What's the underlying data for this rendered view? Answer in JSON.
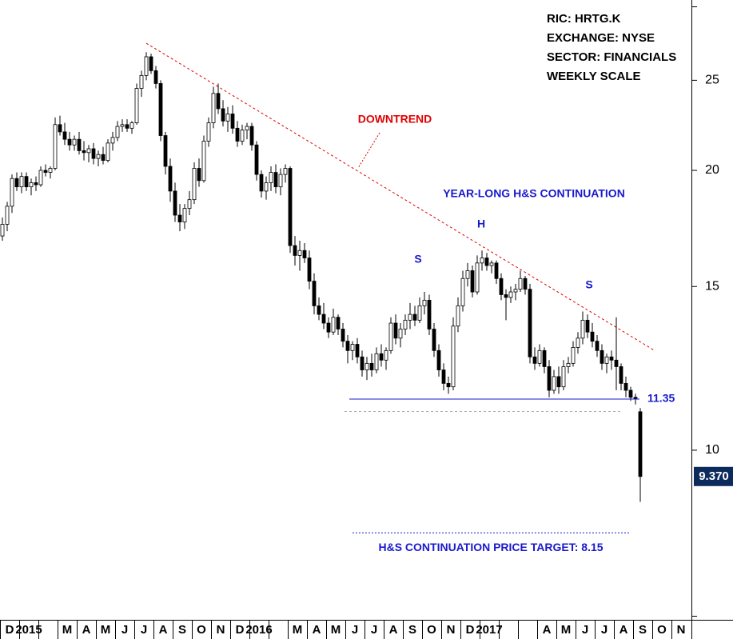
{
  "chart_data": {
    "type": "candlestick",
    "info": [
      "RIC: HRTG.K",
      "EXCHANGE: NYSE",
      "SECTOR: FINANCIALS",
      "WEEKLY SCALE"
    ],
    "categories": [
      "D",
      null,
      null,
      null,
      "2015",
      null,
      null,
      null,
      null,
      null,
      null,
      null,
      "M",
      null,
      null,
      null,
      "A",
      null,
      null,
      null,
      "M",
      null,
      null,
      null,
      "J",
      null,
      null,
      null,
      "J",
      null,
      null,
      null,
      "A",
      null,
      null,
      null,
      "S",
      null,
      null,
      null,
      "O",
      null,
      null,
      null,
      "N",
      null,
      null,
      null,
      "D",
      null,
      null,
      null,
      "2016",
      null,
      null,
      null,
      null,
      null,
      null,
      null,
      "M",
      null,
      null,
      null,
      "A",
      null,
      null,
      null,
      "M",
      null,
      null,
      null,
      "J",
      null,
      null,
      null,
      "J",
      null,
      null,
      null,
      "A",
      null,
      null,
      null,
      "S",
      null,
      null,
      null,
      "O",
      null,
      null,
      null,
      "N",
      null,
      null,
      null,
      "D",
      null,
      null,
      null,
      "2017",
      null,
      null,
      null,
      null,
      null,
      null,
      null,
      null,
      null,
      null,
      null,
      "A",
      null,
      null,
      null,
      "M",
      null,
      null,
      null,
      "J",
      null,
      null,
      null,
      "J",
      null,
      null,
      null,
      "A",
      null,
      null,
      null,
      "S",
      null,
      null,
      null,
      "O",
      null,
      null,
      null,
      "N",
      null,
      null,
      null
    ],
    "open": [
      17.0,
      17.5,
      18.3,
      19.6,
      19.2,
      19.7,
      19.2,
      19.4,
      19.3,
      20.0,
      19.9,
      20.1,
      22.4,
      22.0,
      21.6,
      21.3,
      21.6,
      21.0,
      20.9,
      21.1,
      20.6,
      20.8,
      20.5,
      21.4,
      21.7,
      22.3,
      22.4,
      22.2,
      22.5,
      24.5,
      25.3,
      26.5,
      25.6,
      24.8,
      21.8,
      20.2,
      19.0,
      17.9,
      17.6,
      18.2,
      18.6,
      20.1,
      19.5,
      21.5,
      22.5,
      24.2,
      23.3,
      22.6,
      23.0,
      22.2,
      21.5,
      22.1,
      22.3,
      21.3,
      19.8,
      19.0,
      19.4,
      19.9,
      19.2,
      19.8,
      20.1,
      16.6,
      16.2,
      16.4,
      16.1,
      15.2,
      14.3,
      14.0,
      13.7,
      13.4,
      13.9,
      13.5,
      13.1,
      12.8,
      13.0,
      12.6,
      12.2,
      12.4,
      12.2,
      12.7,
      12.5,
      12.8,
      13.7,
      13.2,
      13.5,
      13.8,
      14.0,
      13.8,
      14.3,
      14.5,
      13.5,
      12.8,
      12.2,
      11.8,
      11.7,
      13.6,
      14.3,
      15.3,
      15.6,
      14.8,
      15.9,
      16.1,
      15.8,
      15.9,
      15.3,
      14.7,
      14.6,
      14.8,
      14.9,
      15.3,
      14.9,
      12.6,
      12.4,
      12.8,
      12.3,
      11.6,
      12.0,
      11.7,
      12.3,
      12.4,
      12.9,
      13.2,
      13.8,
      13.4,
      13.1,
      12.8,
      12.4,
      12.6,
      12.5,
      12.3,
      11.8,
      11.6,
      11.4,
      11.0,
      null,
      null,
      null,
      null,
      null,
      null,
      null,
      null,
      null,
      null
    ],
    "high": [
      17.8,
      18.5,
      19.8,
      19.9,
      19.9,
      19.9,
      19.6,
      19.7,
      20.2,
      20.3,
      20.2,
      22.8,
      22.9,
      22.5,
      22.0,
      21.8,
      22.0,
      21.5,
      21.3,
      21.4,
      21.0,
      21.2,
      21.6,
      22.0,
      22.6,
      22.7,
      22.7,
      22.6,
      24.8,
      25.6,
      26.8,
      26.7,
      25.9,
      25.0,
      22.0,
      20.6,
      19.4,
      18.4,
      18.4,
      19.0,
      20.4,
      20.6,
      21.8,
      22.8,
      24.6,
      24.8,
      23.8,
      23.4,
      23.5,
      22.6,
      22.4,
      22.5,
      22.5,
      21.5,
      20.0,
      19.7,
      20.2,
      20.3,
      20.1,
      20.3,
      20.2,
      17.0,
      16.8,
      16.7,
      16.4,
      15.5,
      14.6,
      14.4,
      13.9,
      14.2,
      14.0,
      13.7,
      13.3,
      13.1,
      13.2,
      12.8,
      12.6,
      12.7,
      12.9,
      13.0,
      12.9,
      13.9,
      14.0,
      13.7,
      14.0,
      14.4,
      14.3,
      14.6,
      14.8,
      14.7,
      13.7,
      13.0,
      12.4,
      12.0,
      13.9,
      14.6,
      15.6,
      15.9,
      15.8,
      16.2,
      16.4,
      16.3,
      16.0,
      16.0,
      15.5,
      14.9,
      15.0,
      15.1,
      15.6,
      15.4,
      15.1,
      12.9,
      13.0,
      12.9,
      12.5,
      12.2,
      12.3,
      12.5,
      12.6,
      13.1,
      13.4,
      14.1,
      14.0,
      13.7,
      13.3,
      13.0,
      12.7,
      12.8,
      13.9,
      12.4,
      12.0,
      11.7,
      11.5,
      11.1,
      null,
      null,
      null,
      null,
      null,
      null,
      null,
      null,
      null,
      null
    ],
    "low": [
      16.8,
      17.2,
      18.0,
      19.0,
      18.9,
      19.0,
      18.8,
      19.0,
      19.2,
      19.7,
      19.6,
      20.0,
      21.8,
      21.3,
      21.0,
      21.0,
      20.8,
      20.5,
      20.4,
      20.3,
      20.2,
      20.3,
      20.4,
      21.0,
      21.5,
      22.0,
      22.0,
      21.9,
      22.4,
      24.0,
      25.0,
      25.4,
      24.5,
      21.5,
      19.8,
      18.5,
      17.6,
      17.2,
      17.3,
      17.9,
      18.4,
      19.2,
      19.4,
      21.2,
      22.2,
      23.0,
      22.3,
      22.0,
      21.9,
      21.2,
      21.3,
      21.6,
      21.0,
      19.5,
      18.7,
      18.6,
      19.0,
      18.9,
      18.8,
      19.4,
      16.3,
      15.8,
      15.6,
      15.9,
      14.9,
      14.0,
      13.8,
      13.5,
      13.2,
      13.3,
      13.3,
      12.9,
      12.4,
      12.5,
      12.4,
      12.0,
      11.9,
      12.0,
      12.1,
      12.3,
      12.2,
      12.7,
      13.0,
      12.9,
      13.3,
      13.5,
      13.6,
      13.7,
      14.0,
      13.3,
      12.6,
      12.0,
      11.6,
      11.5,
      11.6,
      13.4,
      14.1,
      15.0,
      14.6,
      14.7,
      15.6,
      15.6,
      15.5,
      15.1,
      14.5,
      13.8,
      14.4,
      14.5,
      14.8,
      14.7,
      12.4,
      12.2,
      12.3,
      12.1,
      11.4,
      11.5,
      11.5,
      11.6,
      12.1,
      12.3,
      12.7,
      13.0,
      13.2,
      12.9,
      12.6,
      12.2,
      12.1,
      12.2,
      11.6,
      11.6,
      11.4,
      11.3,
      11.2,
      8.8,
      null,
      null,
      null,
      null,
      null,
      null,
      null,
      null,
      null,
      null
    ],
    "close": [
      17.5,
      18.3,
      19.6,
      19.2,
      19.7,
      19.2,
      19.4,
      19.3,
      20.0,
      19.9,
      20.1,
      22.4,
      22.0,
      21.6,
      21.3,
      21.6,
      21.0,
      20.9,
      21.1,
      20.6,
      20.8,
      20.5,
      21.4,
      21.7,
      22.3,
      22.4,
      22.2,
      22.5,
      24.5,
      25.3,
      26.5,
      25.6,
      24.8,
      21.8,
      20.2,
      19.0,
      17.9,
      17.6,
      18.2,
      18.6,
      20.1,
      19.5,
      21.5,
      22.5,
      24.2,
      23.3,
      22.6,
      23.0,
      22.2,
      21.5,
      22.1,
      22.3,
      21.3,
      19.8,
      19.0,
      19.4,
      19.9,
      19.2,
      19.8,
      20.1,
      16.6,
      16.2,
      16.4,
      16.1,
      15.2,
      14.3,
      14.0,
      13.7,
      13.4,
      13.9,
      13.5,
      13.1,
      12.8,
      13.0,
      12.6,
      12.2,
      12.4,
      12.2,
      12.7,
      12.5,
      12.8,
      13.7,
      13.2,
      13.5,
      13.8,
      14.0,
      13.8,
      14.3,
      14.5,
      13.5,
      12.8,
      12.2,
      11.8,
      11.7,
      13.6,
      14.3,
      15.3,
      15.6,
      14.8,
      15.9,
      16.1,
      15.8,
      15.9,
      15.3,
      14.7,
      14.6,
      14.8,
      14.9,
      15.3,
      14.9,
      12.6,
      12.4,
      12.8,
      12.3,
      11.6,
      12.0,
      11.7,
      12.3,
      12.4,
      12.9,
      13.2,
      13.8,
      13.4,
      13.1,
      12.8,
      12.4,
      12.6,
      12.5,
      12.3,
      11.8,
      11.6,
      11.4,
      11.35,
      9.37,
      null,
      null,
      null,
      null,
      null,
      null,
      null,
      null,
      null,
      null
    ],
    "up_color": "#ffffff",
    "down_color": "#000000",
    "log_scale": true,
    "ylim": [
      6.57,
      30.5
    ],
    "yticks": [
      10,
      15,
      20,
      25
    ],
    "trendline": {
      "label": "DOWNTREND",
      "values": [
        27.4,
        12.8
      ],
      "color": "#e00000"
    },
    "pattern_label": "YEAR-LONG H&S CONTINUATION",
    "pattern_points": [
      {
        "label": "S"
      },
      {
        "label": "H"
      },
      {
        "label": "S"
      }
    ],
    "neckline": {
      "value": 11.35,
      "label": "11.35",
      "color": "#1a1acc"
    },
    "target": {
      "value": 8.15,
      "label": "H&S CONTINUATION PRICE TARGET: 8.15",
      "color": "#1a1acc"
    },
    "last_price": {
      "value": 9.37,
      "label": "9.370",
      "color": "#0d2a5c"
    }
  }
}
